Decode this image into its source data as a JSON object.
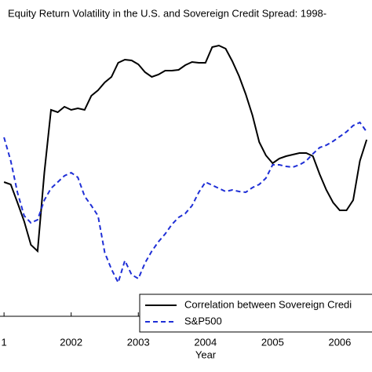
{
  "chart_data": {
    "type": "line",
    "title": "Equity Return Volatility in the U.S. and Sovereign Credit Spread: 1998-",
    "xlabel": "Year",
    "x": [
      2001.0,
      2001.1,
      2001.2,
      2001.3,
      2001.4,
      2001.5,
      2001.6,
      2001.7,
      2001.8,
      2001.9,
      2002.0,
      2002.1,
      2002.2,
      2002.3,
      2002.4,
      2002.5,
      2002.6,
      2002.7,
      2002.8,
      2002.9,
      2003.0,
      2003.1,
      2003.2,
      2003.3,
      2003.4,
      2003.5,
      2003.6,
      2003.7,
      2003.8,
      2003.9,
      2004.0,
      2004.1,
      2004.2,
      2004.3,
      2004.4,
      2004.5,
      2004.6,
      2004.7,
      2004.8,
      2004.9,
      2005.0,
      2005.1,
      2005.2,
      2005.3,
      2005.4,
      2005.5,
      2005.6,
      2005.7,
      2005.8,
      2005.9,
      2006.0,
      2006.1,
      2006.2,
      2006.3,
      2006.4
    ],
    "series": [
      {
        "name": "Correlation between Sovereign Credi",
        "color": "#000000",
        "dash": false,
        "values": [
          171,
          168,
          145,
          121,
          91,
          83,
          183,
          263,
          260,
          267,
          263,
          265,
          263,
          281,
          288,
          298,
          305,
          323,
          327,
          326,
          321,
          311,
          305,
          308,
          313,
          313,
          314,
          320,
          324,
          323,
          323,
          343,
          345,
          341,
          325,
          306,
          283,
          256,
          222,
          205,
          195,
          201,
          204,
          206,
          208,
          208,
          204,
          181,
          161,
          145,
          135,
          135,
          148,
          198,
          225
        ]
      },
      {
        "name": "S&P500",
        "color": "#1f2fd6",
        "dash": true,
        "values": [
          228,
          198,
          158,
          128,
          119,
          123,
          148,
          163,
          171,
          179,
          183,
          177,
          153,
          141,
          128,
          81,
          60,
          43,
          71,
          53,
          48,
          68,
          83,
          95,
          105,
          117,
          126,
          131,
          141,
          158,
          171,
          167,
          163,
          159,
          161,
          159,
          158,
          164,
          168,
          176,
          193,
          193,
          191,
          190,
          193,
          198,
          207,
          215,
          218,
          223,
          229,
          235,
          243,
          247,
          235
        ]
      }
    ],
    "xlim": [
      2000.94,
      2006.48
    ],
    "ylim": [
      0,
      368
    ],
    "xticks": [
      {
        "value": 2001,
        "label": "1"
      },
      2002,
      2003,
      2004,
      2005,
      2006
    ]
  }
}
